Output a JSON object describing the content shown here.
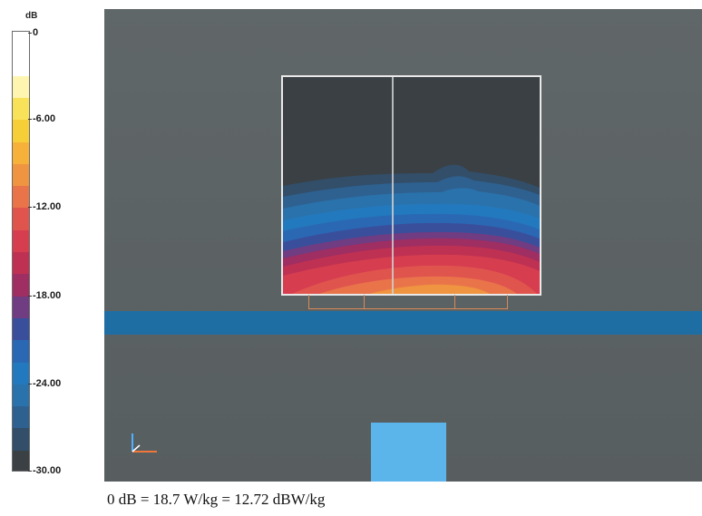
{
  "legend": {
    "unit": "dB",
    "ticks": [
      {
        "value": 0,
        "label": "0"
      },
      {
        "value": -6,
        "label": "-6.00"
      },
      {
        "value": -12,
        "label": "-12.00"
      },
      {
        "value": -18,
        "label": "-18.00"
      },
      {
        "value": -24,
        "label": "-24.00"
      },
      {
        "value": -30,
        "label": "-30.00"
      }
    ],
    "min": -30,
    "max": 0,
    "bands": [
      {
        "from": -3,
        "to": 0,
        "color": "#ffffff"
      },
      {
        "from": -4.5,
        "to": -3,
        "color": "#fdf5b0"
      },
      {
        "from": -6,
        "to": -4.5,
        "color": "#f8e25a"
      },
      {
        "from": -7.5,
        "to": -6,
        "color": "#f6cf38"
      },
      {
        "from": -9,
        "to": -7.5,
        "color": "#f5b13a"
      },
      {
        "from": -10.5,
        "to": -9,
        "color": "#ef9440"
      },
      {
        "from": -12,
        "to": -10.5,
        "color": "#e9744a"
      },
      {
        "from": -13.5,
        "to": -12,
        "color": "#e0544e"
      },
      {
        "from": -15,
        "to": -13.5,
        "color": "#d63e50"
      },
      {
        "from": -16.5,
        "to": -15,
        "color": "#bf3152"
      },
      {
        "from": -18,
        "to": -16.5,
        "color": "#9f2e62"
      },
      {
        "from": -19.5,
        "to": -18,
        "color": "#703c82"
      },
      {
        "from": -21,
        "to": -19.5,
        "color": "#3a4f9c"
      },
      {
        "from": -22.5,
        "to": -21,
        "color": "#2a68b4"
      },
      {
        "from": -24,
        "to": -22.5,
        "color": "#2379bd"
      },
      {
        "from": -25.5,
        "to": -24,
        "color": "#2a72ac"
      },
      {
        "from": -27,
        "to": -25.5,
        "color": "#2e6190"
      },
      {
        "from": -28.5,
        "to": -27,
        "color": "#324e69"
      },
      {
        "from": -30,
        "to": -28.5,
        "color": "#3a4043"
      }
    ]
  },
  "caption": "0 dB = 18.7 W/kg = 12.72 dBW/kg",
  "colors": {
    "background": "#5b6264",
    "phantom_shell": "#1f6ea3",
    "source_block": "#5bb5ea",
    "scan_outline": "#e9e9e9",
    "antenna_outline": "#d98a58"
  }
}
